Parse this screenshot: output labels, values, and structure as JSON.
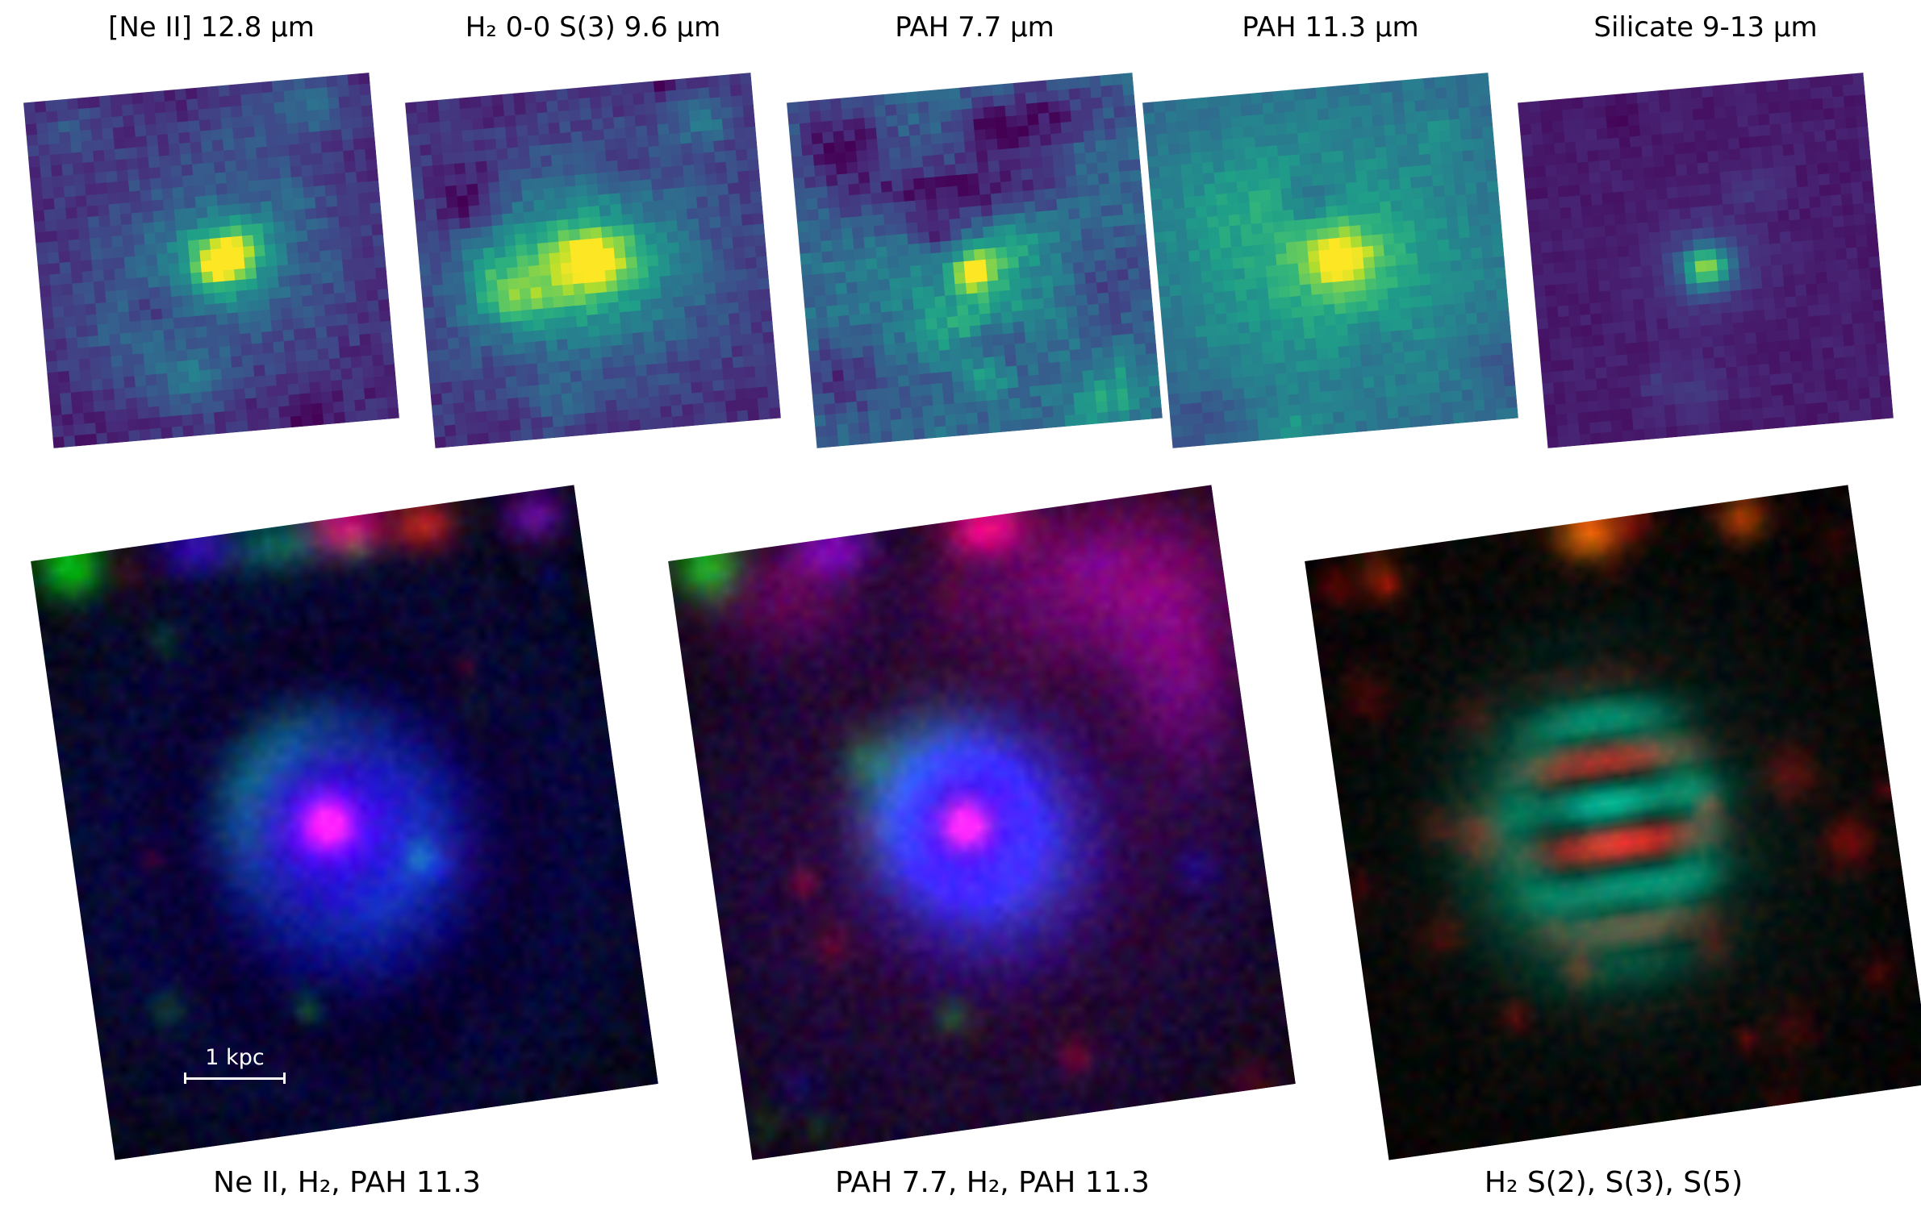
{
  "top_panels": [
    {
      "id": "neii",
      "title": "[Ne II] 12.8 μm",
      "colormap": "viridis"
    },
    {
      "id": "h2s3",
      "title": "H₂ 0-0 S(3) 9.6 μm",
      "colormap": "viridis"
    },
    {
      "id": "pah77",
      "title": "PAH 7.7 μm",
      "colormap": "viridis"
    },
    {
      "id": "pah113",
      "title": "PAH 11.3 μm",
      "colormap": "viridis"
    },
    {
      "id": "silicate",
      "title": "Silicate 9-13 μm",
      "colormap": "viridis"
    }
  ],
  "bottom_panels": [
    {
      "id": "rgb-neii-h2-pah113",
      "label": "Ne II, H₂, PAH 11.3"
    },
    {
      "id": "rgb-pah77-h2-pah113",
      "label": "PAH 7.7, H₂, PAH 11.3"
    },
    {
      "id": "rgb-h2-s2-s3-s5",
      "label": "H₂ S(2), S(3), S(5)"
    }
  ],
  "scale_bar": {
    "label": "1 kpc",
    "color": "#ffffff"
  },
  "palette": {
    "viridis_low": "#440154",
    "viridis_mid": "#21918c",
    "viridis_high": "#fde725",
    "figure_background": "#ffffff",
    "label_color": "#000000"
  }
}
